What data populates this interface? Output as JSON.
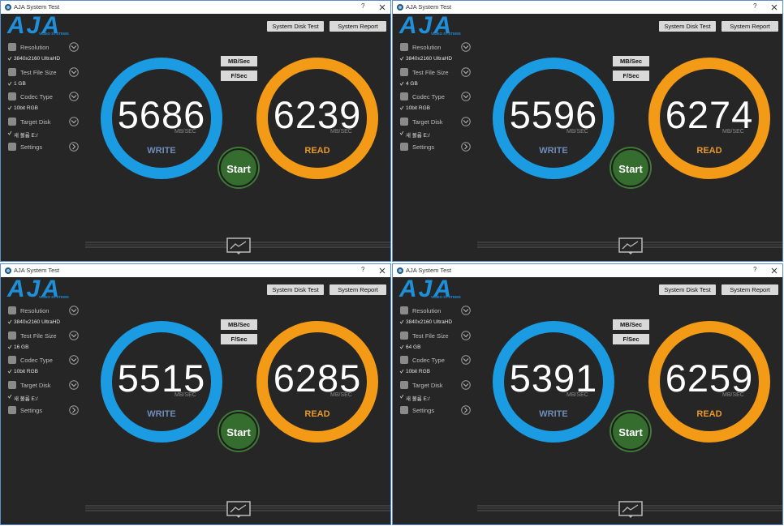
{
  "windows": [
    {
      "title": "AJA System Test",
      "help": "?",
      "logo": "AJA",
      "logo_sub": "VIDEO SYSTEMS",
      "buttons": [
        "System Disk Test",
        "System Report"
      ],
      "settings": [
        {
          "label": "Resolution",
          "value": "3840x2160 UltraHD"
        },
        {
          "label": "Test File Size",
          "value": "1 GB"
        },
        {
          "label": "Codec Type",
          "value": "10bit RGB"
        },
        {
          "label": "Target Disk",
          "value": "새 볼륨 E:/"
        },
        {
          "label": "Settings"
        }
      ],
      "unit_buttons": [
        "MB/Sec",
        "F/Sec"
      ],
      "write": {
        "value": 5686,
        "unit": "MB/SEC",
        "label": "WRITE"
      },
      "read": {
        "value": 6239,
        "unit": "MB/SEC",
        "label": "READ"
      },
      "start": "Start"
    },
    {
      "title": "AJA System Test",
      "help": "?",
      "logo": "AJA",
      "logo_sub": "VIDEO SYSTEMS",
      "buttons": [
        "System Disk Test",
        "System Report"
      ],
      "settings": [
        {
          "label": "Resolution",
          "value": "3840x2160 UltraHD"
        },
        {
          "label": "Test File Size",
          "value": "4 GB"
        },
        {
          "label": "Codec Type",
          "value": "10bit RGB"
        },
        {
          "label": "Target Disk",
          "value": "새 볼륨 E:/"
        },
        {
          "label": "Settings"
        }
      ],
      "unit_buttons": [
        "MB/Sec",
        "F/Sec"
      ],
      "write": {
        "value": 5596,
        "unit": "MB/SEC",
        "label": "WRITE"
      },
      "read": {
        "value": 6274,
        "unit": "MB/SEC",
        "label": "READ"
      },
      "start": "Start"
    },
    {
      "title": "AJA System Test",
      "help": "?",
      "logo": "AJA",
      "logo_sub": "VIDEO SYSTEMS",
      "buttons": [
        "System Disk Test",
        "System Report"
      ],
      "settings": [
        {
          "label": "Resolution",
          "value": "3840x2160 UltraHD"
        },
        {
          "label": "Test File Size",
          "value": "16 GB"
        },
        {
          "label": "Codec Type",
          "value": "10bit RGB"
        },
        {
          "label": "Target Disk",
          "value": "새 볼륨 E:/"
        },
        {
          "label": "Settings"
        }
      ],
      "unit_buttons": [
        "MB/Sec",
        "F/Sec"
      ],
      "write": {
        "value": 5515,
        "unit": "MB/SEC",
        "label": "WRITE"
      },
      "read": {
        "value": 6285,
        "unit": "MB/SEC",
        "label": "READ"
      },
      "start": "Start"
    },
    {
      "title": "AJA System Test",
      "help": "?",
      "logo": "AJA",
      "logo_sub": "VIDEO SYSTEMS",
      "buttons": [
        "System Disk Test",
        "System Report"
      ],
      "settings": [
        {
          "label": "Resolution",
          "value": "3840x2160 UltraHD"
        },
        {
          "label": "Test File Size",
          "value": "64 GB"
        },
        {
          "label": "Codec Type",
          "value": "10bit RGB"
        },
        {
          "label": "Target Disk",
          "value": "새 볼륨 E:/"
        },
        {
          "label": "Settings"
        }
      ],
      "unit_buttons": [
        "MB/Sec",
        "F/Sec"
      ],
      "write": {
        "value": 5391,
        "unit": "MB/SEC",
        "label": "WRITE"
      },
      "read": {
        "value": 6259,
        "unit": "MB/SEC",
        "label": "READ"
      },
      "start": "Start"
    }
  ]
}
